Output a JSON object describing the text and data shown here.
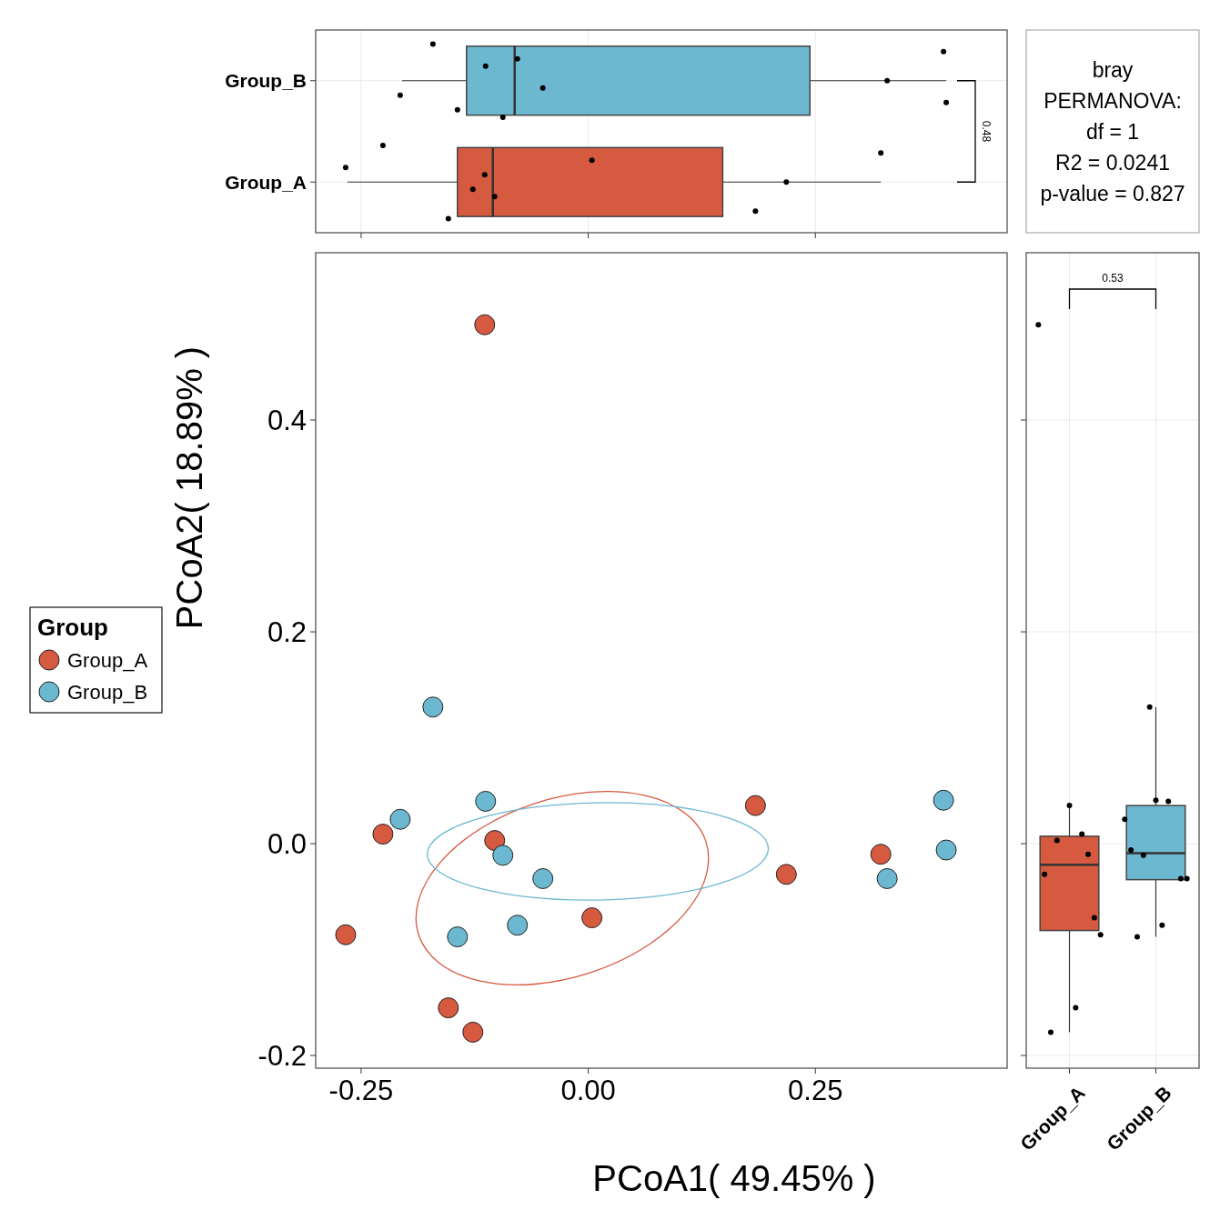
{
  "chart_data": [
    {
      "type": "box",
      "orientation": "horizontal",
      "categories": [
        "Group_B",
        "Group_A"
      ],
      "colors": [
        "#6cb8d1",
        "#d65a40"
      ],
      "boxes": [
        {
          "low": -0.205,
          "q1": -0.134,
          "median": -0.081,
          "q3": 0.244,
          "high": 0.394
        },
        {
          "low": -0.265,
          "q1": -0.144,
          "median": -0.105,
          "q3": 0.148,
          "high": 0.322
        }
      ],
      "series": [
        {
          "type": "scatter",
          "color": "#000000",
          "x": [
            "Group_B",
            "Group_B",
            "Group_B",
            "Group_B",
            "Group_B",
            "Group_B",
            "Group_B",
            "Group_B",
            "Group_B",
            "Group_B",
            "Group_A",
            "Group_A",
            "Group_A",
            "Group_A",
            "Group_A",
            "Group_A",
            "Group_A",
            "Group_A",
            "Group_A",
            "Group_A"
          ],
          "values": [
            -0.171,
            -0.207,
            -0.113,
            -0.094,
            -0.05,
            -0.078,
            -0.144,
            0.329,
            0.391,
            0.394,
            -0.114,
            -0.226,
            -0.103,
            -0.267,
            -0.154,
            -0.127,
            0.004,
            0.184,
            0.218,
            0.322
          ]
        }
      ],
      "xlim": [
        -0.3,
        0.461
      ],
      "xticks": [
        -0.25,
        0,
        0.25
      ],
      "tick_labels": "y",
      "grid": true,
      "annotations": [
        "0.48"
      ]
    },
    {
      "type": "other",
      "annotations": [
        "bray",
        "PERMANOVA:",
        "df = 1",
        "R2 = 0.0241",
        "p-value = 0.827"
      ]
    },
    {
      "type": "scatter",
      "xlabel": "PCoA1( 49.45% )",
      "ylabel": "PCoA2( 18.89% )",
      "legend_title": "Group",
      "legend": "left",
      "marker": "circle",
      "series": [
        {
          "name": "Group_A",
          "color": "#d65a40",
          "x": [
            -0.114,
            -0.226,
            -0.103,
            -0.267,
            -0.154,
            -0.127,
            0.004,
            0.184,
            0.218,
            0.322
          ],
          "values": [
            0.49,
            0.009,
            0.003,
            -0.086,
            -0.155,
            -0.178,
            -0.07,
            0.036,
            -0.029,
            -0.01
          ]
        },
        {
          "name": "Group_B",
          "color": "#6cb8d1",
          "x": [
            -0.171,
            -0.207,
            -0.113,
            -0.094,
            -0.05,
            -0.078,
            -0.144,
            0.329,
            0.391,
            0.394
          ],
          "values": [
            0.129,
            0.023,
            0.04,
            -0.011,
            -0.033,
            -0.077,
            -0.088,
            -0.033,
            0.041,
            -0.006
          ]
        }
      ],
      "xlim": [
        -0.3,
        0.461
      ],
      "xticks": [
        -0.25,
        {
          "value": 0,
          "label": "0.00"
        },
        0.25
      ],
      "ylim": [
        -0.212,
        0.558
      ],
      "yticks": [
        -0.2,
        {
          "value": 0,
          "label": "0.0"
        },
        0.2,
        0.4
      ]
    },
    {
      "type": "box",
      "categories": [
        "Group_A",
        "Group_B"
      ],
      "colors": [
        "#d65a40",
        "#6cb8d1"
      ],
      "boxes": [
        {
          "low": -0.178,
          "q1": -0.082,
          "median": -0.02,
          "q3": 0.007,
          "high": 0.036
        },
        {
          "low": -0.088,
          "q1": -0.034,
          "median": -0.009,
          "q3": 0.036,
          "high": 0.129
        }
      ],
      "series": [
        {
          "type": "scatter",
          "color": "#000000",
          "x": [
            "Group_A",
            "Group_A",
            "Group_A",
            "Group_A",
            "Group_A",
            "Group_A",
            "Group_A",
            "Group_A",
            "Group_A",
            "Group_A",
            "Group_B",
            "Group_B",
            "Group_B",
            "Group_B",
            "Group_B",
            "Group_B",
            "Group_B",
            "Group_B",
            "Group_B",
            "Group_B"
          ],
          "values": [
            0.49,
            0.009,
            0.003,
            -0.086,
            -0.155,
            -0.178,
            -0.07,
            0.036,
            -0.029,
            -0.01,
            0.129,
            0.023,
            0.04,
            -0.011,
            -0.033,
            -0.077,
            -0.088,
            -0.033,
            0.041,
            -0.006
          ]
        }
      ],
      "ylim": [
        -0.212,
        0.558
      ],
      "yticks": [
        -0.2,
        0,
        0.2,
        0.4
      ],
      "tick_labels": "x",
      "grid": true,
      "annotations": [
        "0.53"
      ]
    }
  ]
}
